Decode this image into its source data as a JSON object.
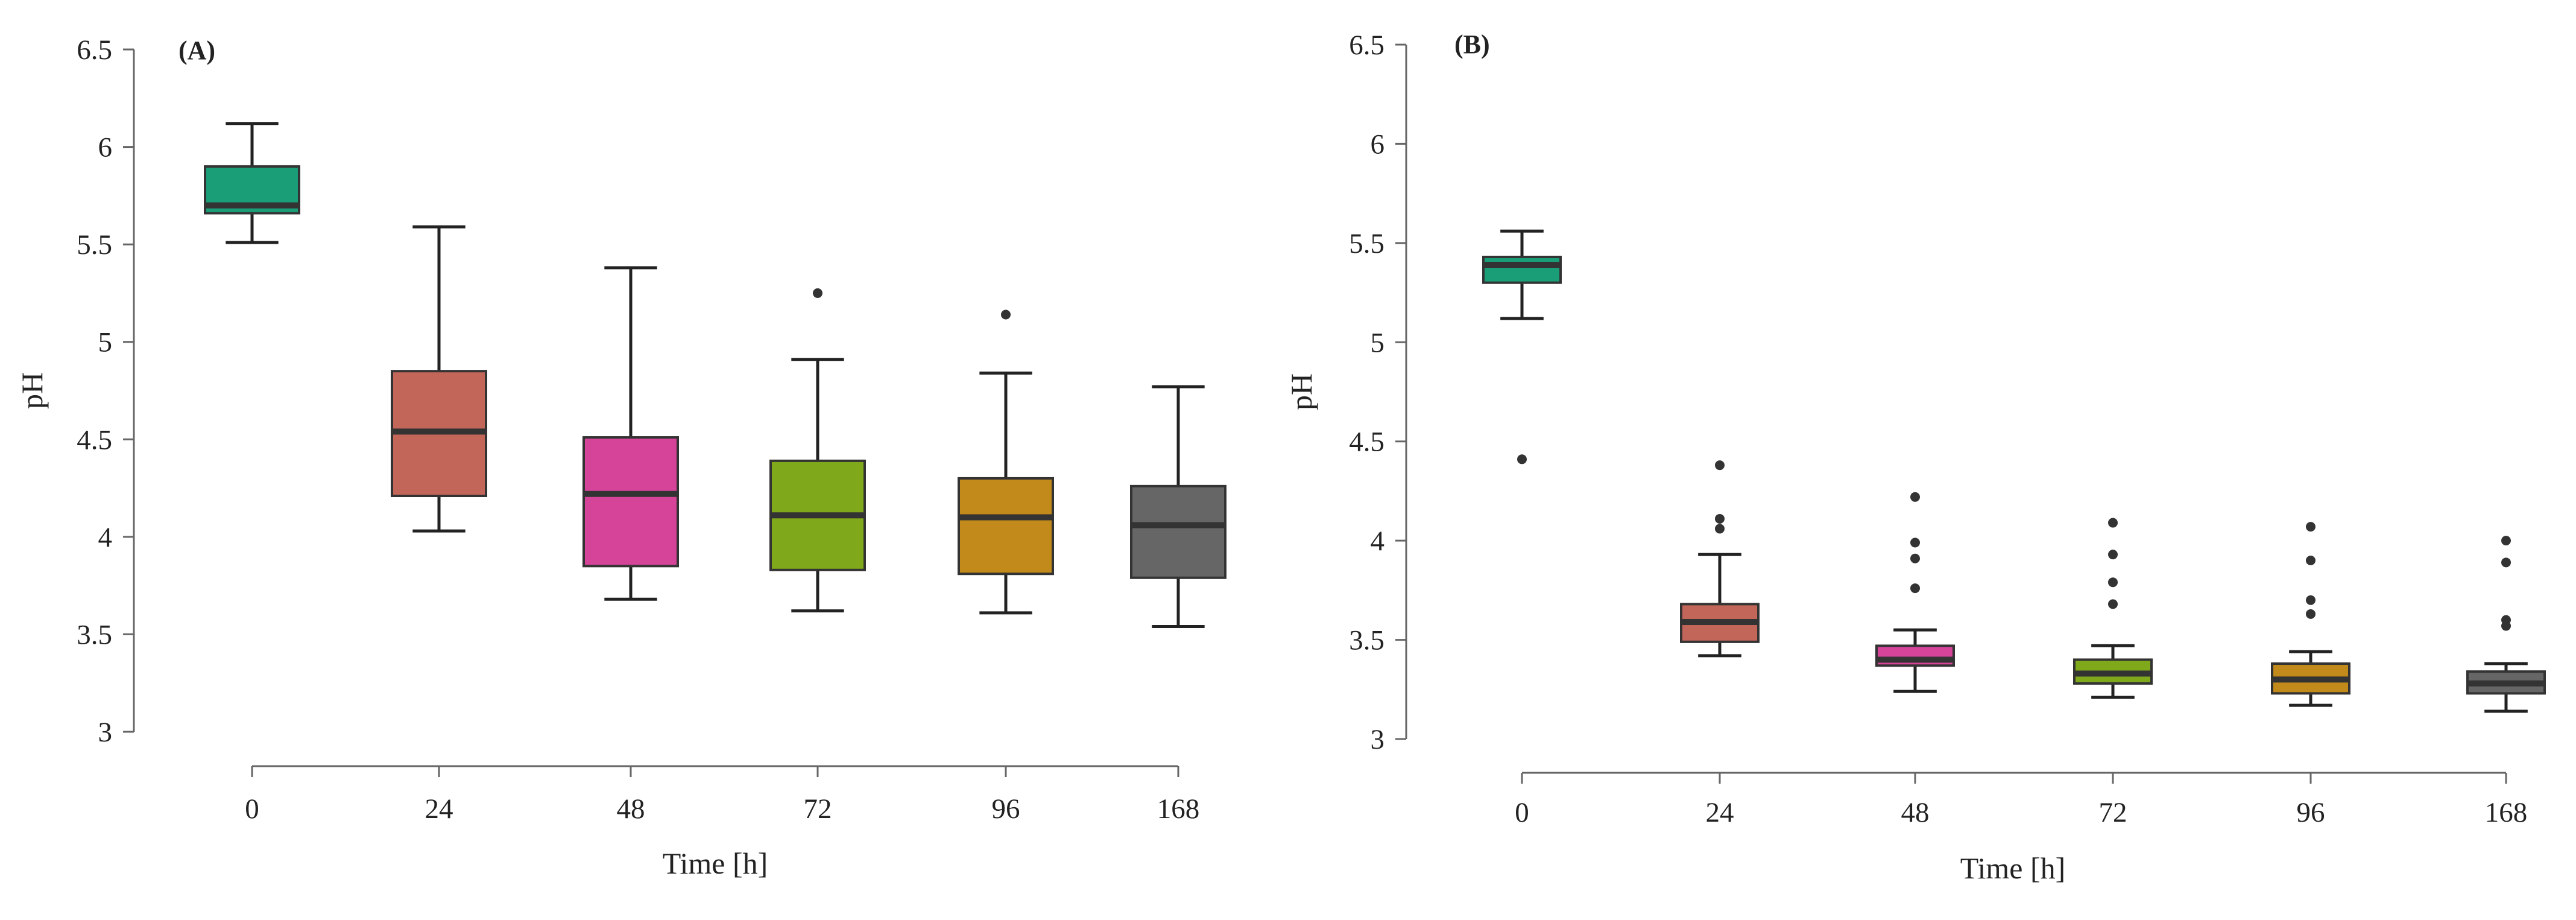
{
  "chart_data": [
    {
      "type": "box",
      "panel_label": "(A)",
      "xlabel": "Time [h]",
      "ylabel": "pH",
      "ylim": [
        3,
        6.5
      ],
      "yticks": [
        "3",
        "3.5",
        "4",
        "4.5",
        "5",
        "5.5",
        "6",
        "6.5"
      ],
      "categories": [
        "0",
        "24",
        "48",
        "72",
        "96",
        "168"
      ],
      "boxes": [
        {
          "category": "0",
          "color": "#1a9e77",
          "min": 5.51,
          "q1": 5.66,
          "median": 5.7,
          "q3": 5.9,
          "max": 6.12,
          "outliers": []
        },
        {
          "category": "24",
          "color": "#c2665a",
          "min": 4.03,
          "q1": 4.21,
          "median": 4.54,
          "q3": 4.85,
          "max": 5.59,
          "outliers": []
        },
        {
          "category": "48",
          "color": "#d6449a",
          "min": 3.68,
          "q1": 3.85,
          "median": 4.22,
          "q3": 4.51,
          "max": 5.38,
          "outliers": []
        },
        {
          "category": "72",
          "color": "#7fa81a",
          "min": 3.62,
          "q1": 3.83,
          "median": 4.11,
          "q3": 4.39,
          "max": 4.91,
          "outliers": [
            5.25
          ]
        },
        {
          "category": "96",
          "color": "#c18a1a",
          "min": 3.61,
          "q1": 3.81,
          "median": 4.1,
          "q3": 4.3,
          "max": 4.84,
          "outliers": [
            5.14
          ]
        },
        {
          "category": "168",
          "color": "#666666",
          "min": 3.54,
          "q1": 3.79,
          "median": 4.06,
          "q3": 4.26,
          "max": 4.77,
          "outliers": []
        }
      ]
    },
    {
      "type": "box",
      "panel_label": "(B)",
      "xlabel": "Time [h]",
      "ylabel": "pH",
      "ylim": [
        3,
        6.5
      ],
      "yticks": [
        "3",
        "3.5",
        "4",
        "4.5",
        "5",
        "5.5",
        "6",
        "6.5"
      ],
      "categories": [
        "0",
        "24",
        "48",
        "72",
        "96",
        "168"
      ],
      "boxes": [
        {
          "category": "0",
          "color": "#1a9e77",
          "min": 5.12,
          "q1": 5.3,
          "median": 5.39,
          "q3": 5.43,
          "max": 5.56,
          "outliers": [
            4.41
          ]
        },
        {
          "category": "24",
          "color": "#c2665a",
          "min": 3.42,
          "q1": 3.49,
          "median": 3.59,
          "q3": 3.68,
          "max": 3.93,
          "outliers": [
            4.06,
            4.11,
            4.38
          ]
        },
        {
          "category": "48",
          "color": "#d6449a",
          "min": 3.24,
          "q1": 3.37,
          "median": 3.4,
          "q3": 3.47,
          "max": 3.55,
          "outliers": [
            3.76,
            3.91,
            3.99,
            4.22
          ]
        },
        {
          "category": "72",
          "color": "#7fa81a",
          "min": 3.21,
          "q1": 3.28,
          "median": 3.33,
          "q3": 3.4,
          "max": 3.47,
          "outliers": [
            3.68,
            3.79,
            3.93,
            4.09
          ]
        },
        {
          "category": "96",
          "color": "#c18a1a",
          "min": 3.17,
          "q1": 3.23,
          "median": 3.3,
          "q3": 3.38,
          "max": 3.44,
          "outliers": [
            3.63,
            3.7,
            3.9,
            4.07
          ]
        },
        {
          "category": "168",
          "color": "#666666",
          "min": 3.14,
          "q1": 3.23,
          "median": 3.28,
          "q3": 3.34,
          "max": 3.38,
          "outliers": [
            3.57,
            3.6,
            3.89,
            4.0
          ]
        }
      ]
    }
  ]
}
